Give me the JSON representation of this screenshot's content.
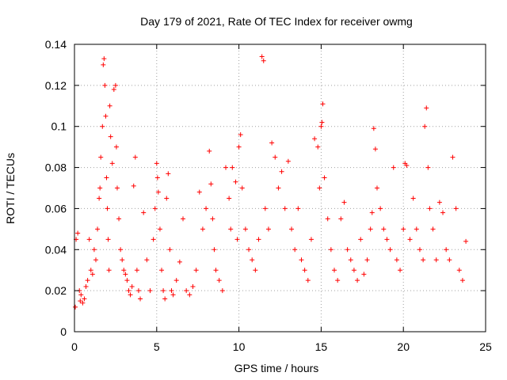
{
  "chart_data": {
    "type": "scatter",
    "title": "Day 179 of 2021, Rate Of TEC Index for receiver owmg",
    "xlabel": "GPS time / hours",
    "ylabel": "ROTI / TECUs",
    "xlim": [
      0,
      25
    ],
    "ylim": [
      0,
      0.14
    ],
    "x_ticks": [
      0,
      5,
      10,
      15,
      20,
      25
    ],
    "y_ticks": [
      0,
      0.02,
      0.04,
      0.06,
      0.08,
      0.1,
      0.12,
      0.14
    ],
    "x_tick_labels": [
      "0",
      "5",
      "10",
      "15",
      "20",
      "25"
    ],
    "y_tick_labels": [
      "0",
      "0.02",
      "0.04",
      "0.06",
      "0.08",
      "0.1",
      "0.12",
      "0.14"
    ],
    "grid": true,
    "marker": "+",
    "colors": {
      "series": "#ff0000",
      "grid": "#a0a0a0",
      "frame": "#000000"
    },
    "series": [
      {
        "x": [
          0.05,
          0.1,
          0.2,
          0.3,
          0.35,
          0.4,
          0.5,
          0.6,
          0.7,
          0.8,
          0.9,
          1.0,
          1.1,
          1.2,
          1.3,
          1.4,
          1.5,
          1.55,
          1.6,
          1.7,
          1.75,
          1.8,
          1.85,
          1.9,
          1.95,
          2.0,
          2.05,
          2.1,
          2.15,
          2.2,
          2.3,
          2.4,
          2.5,
          2.55,
          2.6,
          2.7,
          2.8,
          2.9,
          3.0,
          3.1,
          3.2,
          3.3,
          3.4,
          3.5,
          3.6,
          3.7,
          3.8,
          3.9,
          4.0,
          4.2,
          4.4,
          4.6,
          4.8,
          4.9,
          5.0,
          5.05,
          5.1,
          5.2,
          5.3,
          5.4,
          5.5,
          5.6,
          5.7,
          5.8,
          5.9,
          6.0,
          6.2,
          6.4,
          6.6,
          6.8,
          7.0,
          7.2,
          7.4,
          7.6,
          7.8,
          8.0,
          8.2,
          8.3,
          8.4,
          8.5,
          8.6,
          8.8,
          9.0,
          9.2,
          9.4,
          9.5,
          9.6,
          9.8,
          9.9,
          10.0,
          10.1,
          10.2,
          10.4,
          10.6,
          10.8,
          11.0,
          11.2,
          11.4,
          11.5,
          11.6,
          11.8,
          12.0,
          12.2,
          12.4,
          12.6,
          12.8,
          13.0,
          13.2,
          13.4,
          13.6,
          13.8,
          14.0,
          14.2,
          14.4,
          14.6,
          14.8,
          14.9,
          15.0,
          15.05,
          15.1,
          15.2,
          15.4,
          15.6,
          15.8,
          16.0,
          16.2,
          16.4,
          16.6,
          16.8,
          17.0,
          17.2,
          17.4,
          17.6,
          17.8,
          18.0,
          18.1,
          18.2,
          18.3,
          18.4,
          18.6,
          18.8,
          19.0,
          19.2,
          19.4,
          19.6,
          19.8,
          20.0,
          20.1,
          20.2,
          20.4,
          20.6,
          20.8,
          21.0,
          21.2,
          21.3,
          21.4,
          21.5,
          21.6,
          21.8,
          22.0,
          22.2,
          22.4,
          22.6,
          22.8,
          23.0,
          23.2,
          23.4,
          23.6,
          23.8
        ],
        "y": [
          0.012,
          0.045,
          0.048,
          0.02,
          0.015,
          0.018,
          0.014,
          0.016,
          0.022,
          0.025,
          0.045,
          0.03,
          0.028,
          0.04,
          0.035,
          0.05,
          0.065,
          0.07,
          0.085,
          0.1,
          0.13,
          0.133,
          0.12,
          0.105,
          0.075,
          0.06,
          0.045,
          0.03,
          0.11,
          0.095,
          0.082,
          0.118,
          0.12,
          0.09,
          0.07,
          0.055,
          0.04,
          0.035,
          0.03,
          0.028,
          0.025,
          0.02,
          0.018,
          0.022,
          0.071,
          0.085,
          0.03,
          0.02,
          0.016,
          0.058,
          0.035,
          0.02,
          0.045,
          0.06,
          0.082,
          0.075,
          0.068,
          0.05,
          0.03,
          0.02,
          0.016,
          0.065,
          0.077,
          0.04,
          0.02,
          0.018,
          0.025,
          0.034,
          0.055,
          0.02,
          0.018,
          0.022,
          0.03,
          0.068,
          0.05,
          0.06,
          0.088,
          0.072,
          0.055,
          0.04,
          0.03,
          0.025,
          0.02,
          0.08,
          0.065,
          0.05,
          0.08,
          0.073,
          0.045,
          0.09,
          0.096,
          0.07,
          0.05,
          0.04,
          0.035,
          0.03,
          0.045,
          0.134,
          0.132,
          0.06,
          0.05,
          0.092,
          0.085,
          0.07,
          0.078,
          0.06,
          0.083,
          0.05,
          0.04,
          0.06,
          0.035,
          0.03,
          0.025,
          0.045,
          0.094,
          0.09,
          0.07,
          0.1,
          0.102,
          0.111,
          0.075,
          0.055,
          0.04,
          0.03,
          0.025,
          0.055,
          0.063,
          0.04,
          0.035,
          0.03,
          0.025,
          0.045,
          0.028,
          0.035,
          0.05,
          0.058,
          0.099,
          0.089,
          0.07,
          0.06,
          0.05,
          0.045,
          0.04,
          0.08,
          0.035,
          0.03,
          0.05,
          0.082,
          0.081,
          0.045,
          0.065,
          0.05,
          0.04,
          0.035,
          0.1,
          0.109,
          0.08,
          0.06,
          0.05,
          0.035,
          0.063,
          0.058,
          0.04,
          0.035,
          0.085,
          0.06,
          0.03,
          0.025,
          0.044
        ]
      }
    ]
  }
}
